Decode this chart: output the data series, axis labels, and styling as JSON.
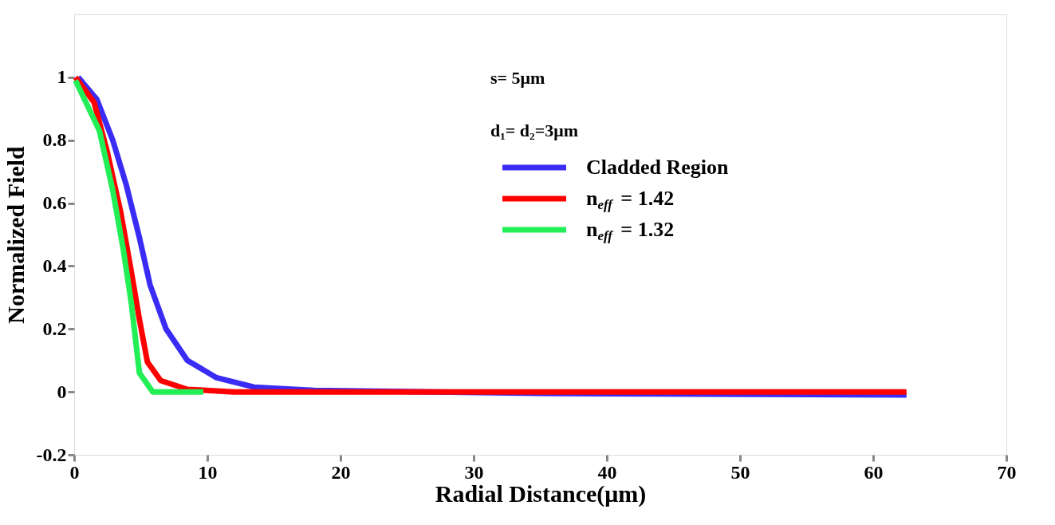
{
  "chart_data": {
    "type": "line",
    "xlabel": "Radial Distance(μm)",
    "ylabel": "Normalized Field",
    "xlim": [
      0,
      70
    ],
    "xticks": [
      0,
      10,
      20,
      30,
      40,
      50,
      60,
      70
    ],
    "ylim": [
      -0.2,
      1.2
    ],
    "yticks": [
      -0.2,
      0,
      0.2,
      0.4,
      0.6,
      0.8,
      1
    ],
    "grid": false,
    "legend": "top right",
    "line_style": "solid",
    "marker": "none",
    "annotations": [
      "s= 5μm",
      "d₁= d₂=3μm"
    ],
    "series": [
      {
        "name": "Cladded Region",
        "color": "#3a2cf5",
        "x": [
          0.3,
          1.7,
          2.9,
          3.9,
          4.9,
          5.7,
          6.9,
          8.5,
          10.7,
          13.5,
          18,
          35,
          62.5
        ],
        "values": [
          1.0,
          0.93,
          0.8,
          0.66,
          0.49,
          0.34,
          0.2,
          0.1,
          0.045,
          0.015,
          0.005,
          -0.005,
          -0.01
        ]
      },
      {
        "name": "n$_{eff}$ = 1.42",
        "color": "#ff0000",
        "x": [
          0.1,
          1.5,
          2.5,
          3.5,
          4.3,
          4.9,
          5.5,
          6.5,
          8.5,
          12,
          62.5
        ],
        "values": [
          1.0,
          0.92,
          0.76,
          0.57,
          0.38,
          0.23,
          0.095,
          0.036,
          0.008,
          0,
          0
        ]
      },
      {
        "name": "n$_{eff}$ = 1.32",
        "color": "#22ee55",
        "x": [
          0.1,
          1.9,
          2.9,
          3.7,
          4.3,
          4.9,
          5.9,
          9.7
        ],
        "values": [
          0.99,
          0.83,
          0.64,
          0.45,
          0.28,
          0.06,
          0.0,
          0.0
        ]
      }
    ]
  }
}
